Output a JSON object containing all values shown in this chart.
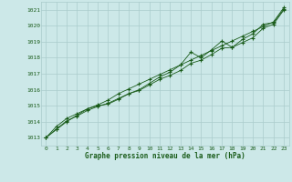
{
  "bg_color": "#cce8e8",
  "grid_color": "#aacccc",
  "line_color": "#1a5c1a",
  "marker_color": "#1a5c1a",
  "xlabel": "Graphe pression niveau de la mer (hPa)",
  "xlabel_color": "#1a5c1a",
  "ylabel_color": "#1a5c1a",
  "xlim": [
    -0.5,
    23.5
  ],
  "ylim": [
    1012.5,
    1021.5
  ],
  "yticks": [
    1013,
    1014,
    1015,
    1016,
    1017,
    1018,
    1019,
    1020,
    1021
  ],
  "xticks": [
    0,
    1,
    2,
    3,
    4,
    5,
    6,
    7,
    8,
    9,
    10,
    11,
    12,
    13,
    14,
    15,
    16,
    17,
    18,
    19,
    20,
    21,
    22,
    23
  ],
  "series": [
    [
      1013.0,
      1013.7,
      1014.2,
      1014.5,
      1014.8,
      1015.0,
      1015.1,
      1015.4,
      1015.75,
      1016.0,
      1016.4,
      1016.8,
      1017.1,
      1017.55,
      1018.35,
      1018.0,
      1018.5,
      1019.05,
      1018.65,
      1019.15,
      1019.5,
      1020.1,
      1020.2,
      1021.05
    ],
    [
      1013.0,
      1013.55,
      1014.05,
      1014.35,
      1014.7,
      1014.95,
      1015.15,
      1015.45,
      1015.75,
      1015.95,
      1016.3,
      1016.65,
      1016.9,
      1017.2,
      1017.65,
      1017.85,
      1018.2,
      1018.6,
      1018.65,
      1018.95,
      1019.25,
      1019.85,
      1020.1,
      1021.0
    ],
    [
      1013.0,
      1013.5,
      1014.0,
      1014.4,
      1014.8,
      1015.05,
      1015.35,
      1015.75,
      1016.05,
      1016.35,
      1016.65,
      1016.95,
      1017.25,
      1017.55,
      1017.85,
      1018.15,
      1018.45,
      1018.75,
      1019.05,
      1019.35,
      1019.65,
      1019.95,
      1020.25,
      1021.15
    ]
  ],
  "figsize": [
    3.2,
    2.0
  ],
  "dpi": 100
}
